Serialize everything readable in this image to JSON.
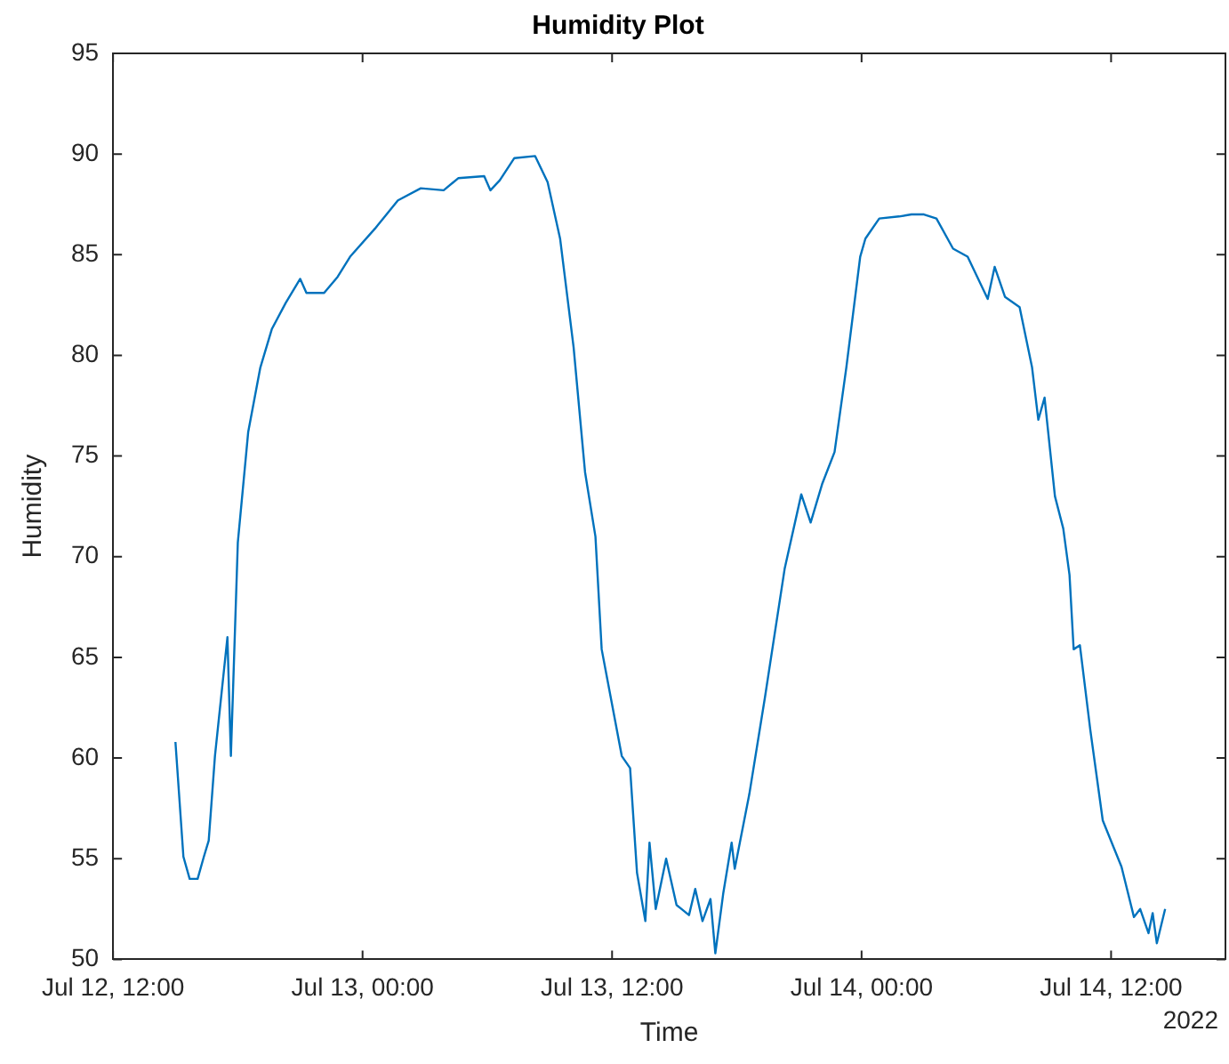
{
  "chart_data": {
    "type": "line",
    "title": "Humidity Plot",
    "xlabel": "Time",
    "ylabel": "Humidity",
    "x": [
      "2022-07-12T15:00",
      "2022-07-12T15:23",
      "2022-07-12T15:41",
      "2022-07-12T16:04",
      "2022-07-12T16:22",
      "2022-07-12T16:36",
      "2022-07-12T16:54",
      "2022-07-12T17:30",
      "2022-07-12T17:40",
      "2022-07-12T18:00",
      "2022-07-12T18:30",
      "2022-07-12T19:05",
      "2022-07-12T19:38",
      "2022-07-12T20:18",
      "2022-07-12T21:00",
      "2022-07-12T21:18",
      "2022-07-12T22:09",
      "2022-07-12T22:48",
      "2022-07-12T23:24",
      "2022-07-13T00:36",
      "2022-07-13T01:42",
      "2022-07-13T02:48",
      "2022-07-13T03:54",
      "2022-07-13T04:36",
      "2022-07-13T05:51",
      "2022-07-13T06:09",
      "2022-07-13T06:36",
      "2022-07-13T07:18",
      "2022-07-13T08:18",
      "2022-07-13T08:54",
      "2022-07-13T09:30",
      "2022-07-13T10:09",
      "2022-07-13T10:42",
      "2022-07-13T11:12",
      "2022-07-13T11:30",
      "2022-07-13T12:28",
      "2022-07-13T12:52",
      "2022-07-13T13:12",
      "2022-07-13T13:36",
      "2022-07-13T13:48",
      "2022-07-13T14:06",
      "2022-07-13T14:36",
      "2022-07-13T15:06",
      "2022-07-13T15:42",
      "2022-07-13T16:00",
      "2022-07-13T16:21",
      "2022-07-13T16:44",
      "2022-07-13T16:58",
      "2022-07-13T17:21",
      "2022-07-13T17:45",
      "2022-07-13T17:54",
      "2022-07-13T18:36",
      "2022-07-13T19:21",
      "2022-07-13T20:18",
      "2022-07-13T21:06",
      "2022-07-13T21:33",
      "2022-07-13T22:06",
      "2022-07-13T22:42",
      "2022-07-13T23:16",
      "2022-07-13T23:56",
      "2022-07-14T00:11",
      "2022-07-14T00:51",
      "2022-07-14T01:48",
      "2022-07-14T02:24",
      "2022-07-14T03:00",
      "2022-07-14T03:36",
      "2022-07-14T04:24",
      "2022-07-14T05:06",
      "2022-07-14T06:04",
      "2022-07-14T06:24",
      "2022-07-14T06:54",
      "2022-07-14T07:36",
      "2022-07-14T08:12",
      "2022-07-14T08:30",
      "2022-07-14T08:48",
      "2022-07-14T09:18",
      "2022-07-14T09:42",
      "2022-07-14T10:00",
      "2022-07-14T10:12",
      "2022-07-14T10:30",
      "2022-07-14T11:00",
      "2022-07-14T11:36",
      "2022-07-14T12:30",
      "2022-07-14T13:06",
      "2022-07-14T13:24",
      "2022-07-14T13:48",
      "2022-07-14T14:00",
      "2022-07-14T14:12",
      "2022-07-14T14:36"
    ],
    "series": [
      {
        "color": "#0072bd",
        "values": [
          60.8,
          55.1,
          54.0,
          54.0,
          55.1,
          55.9,
          60.1,
          66.0,
          60.1,
          70.7,
          76.2,
          79.4,
          81.3,
          82.6,
          83.8,
          83.1,
          83.1,
          83.9,
          84.9,
          86.3,
          87.7,
          88.3,
          88.2,
          88.8,
          88.9,
          88.2,
          88.7,
          89.8,
          89.9,
          88.6,
          85.8,
          80.4,
          74.2,
          71.0,
          65.4,
          60.1,
          59.5,
          54.3,
          51.9,
          55.8,
          52.5,
          55.0,
          52.7,
          52.2,
          53.5,
          51.9,
          53.0,
          50.3,
          53.3,
          55.8,
          54.5,
          58.2,
          63.0,
          69.4,
          73.1,
          71.7,
          73.6,
          75.2,
          79.4,
          84.9,
          85.8,
          86.8,
          86.9,
          87.0,
          87.0,
          86.8,
          85.3,
          84.9,
          82.8,
          84.4,
          82.9,
          82.4,
          79.4,
          76.8,
          77.9,
          73.0,
          71.4,
          69.1,
          65.4,
          65.6,
          61.4,
          56.9,
          54.6,
          52.1,
          52.5,
          51.3,
          52.3,
          50.8,
          52.5
        ]
      }
    ],
    "xlim": [
      "2022-07-12T12:00",
      "2022-07-14T17:30"
    ],
    "xticks": [
      {
        "value": "2022-07-12T12:00",
        "label": "Jul 12, 12:00"
      },
      {
        "value": "2022-07-13T00:00",
        "label": "Jul 13, 00:00"
      },
      {
        "value": "2022-07-13T12:00",
        "label": "Jul 13, 12:00"
      },
      {
        "value": "2022-07-14T00:00",
        "label": "Jul 14, 00:00"
      },
      {
        "value": "2022-07-14T12:00",
        "label": "Jul 14, 12:00"
      }
    ],
    "ylim": [
      50,
      95
    ],
    "yticks": [
      50,
      55,
      60,
      65,
      70,
      75,
      80,
      85,
      90,
      95
    ],
    "annotations": [
      "2022"
    ],
    "legend": false,
    "marker": "none",
    "line_style": "solid"
  }
}
